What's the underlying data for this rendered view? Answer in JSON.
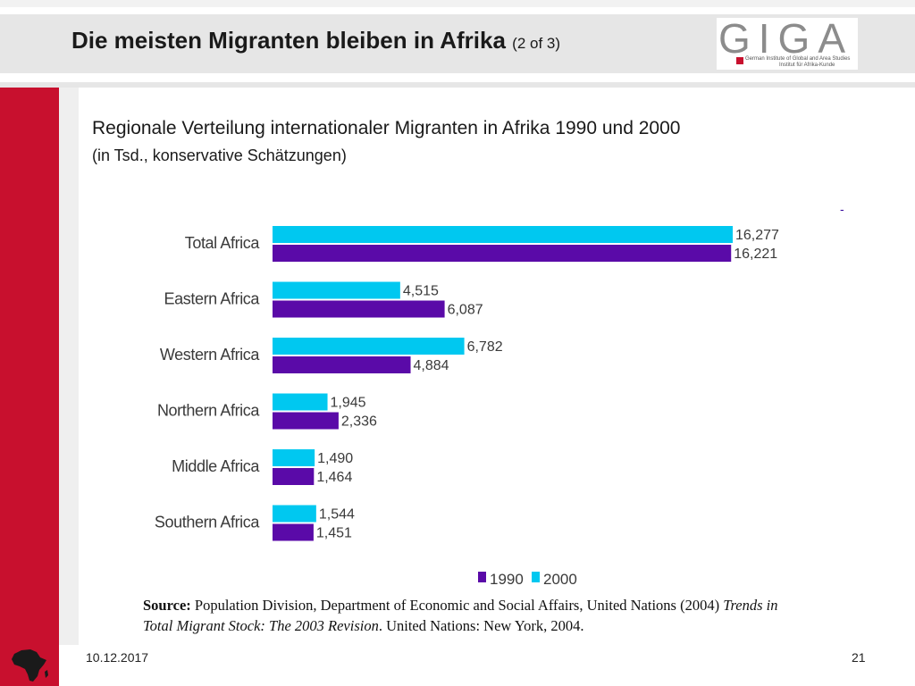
{
  "header": {
    "title": "Die meisten Migranten bleiben in Afrika",
    "title_suffix": "(2 of 3)"
  },
  "logo": {
    "letters": "GIGA",
    "line1": "German Institute of Global and Area Studies",
    "line2": "Institut für Afrika-Kunde",
    "accent_color": "#c8102e"
  },
  "chart_data": {
    "type": "bar",
    "orientation": "horizontal",
    "title": "Regionale Verteilung internationaler Migranten in Afrika 1990 und 2000",
    "subtitle": "(in Tsd., konservative Schätzungen)",
    "categories": [
      "Total Africa",
      "Eastern Africa",
      "Western Africa",
      "Northern Africa",
      "Middle Africa",
      "Southern Africa"
    ],
    "series": [
      {
        "name": "2000",
        "color": "#00c8f0",
        "values": [
          16277,
          4515,
          6782,
          1945,
          1490,
          1544
        ],
        "labels": [
          "16,277",
          "4,515",
          "6,782",
          "1,945",
          "1,490",
          "1,544"
        ]
      },
      {
        "name": "1990",
        "color": "#5a0aa8",
        "values": [
          16221,
          6087,
          4884,
          2336,
          1464,
          1451
        ],
        "labels": [
          "16,221",
          "6,087",
          "4,884",
          "2,336",
          "1,464",
          "1,451"
        ]
      }
    ],
    "legend_order": [
      "1990",
      "2000"
    ],
    "legend_placement": "bottom",
    "xlim": [
      0,
      16277
    ],
    "grid": false
  },
  "source": {
    "label": "Source:",
    "text1": "Population Division, Department of Economic and Social Affairs, United Nations (2004)",
    "italic": "Trends in Total Migrant Stock: The 2003 Revision",
    "text2": ". United Nations: New York, 2004."
  },
  "footer": {
    "date": "10.12.2017",
    "page": "21"
  },
  "decor": {
    "dash": "-",
    "africa_icon": "africa-map-icon"
  }
}
